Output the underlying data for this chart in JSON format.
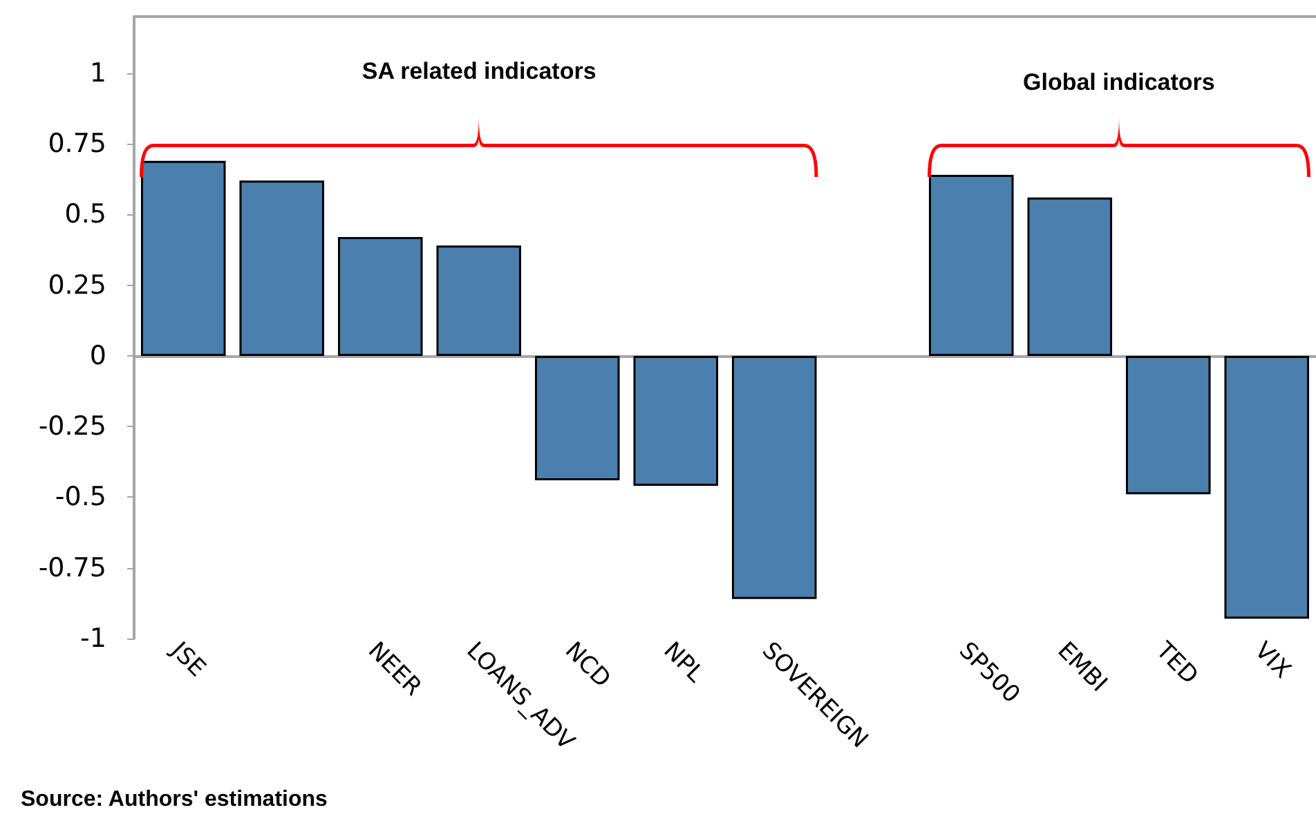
{
  "chart_data": {
    "type": "bar",
    "categories": [
      "JSE",
      null,
      "NEER",
      "LOANS_ADV",
      "NCD",
      "NPL",
      "SOVEREIGN",
      null,
      "SP500",
      "EMBI",
      "TED",
      "VIX"
    ],
    "values": [
      0.69,
      0.62,
      0.42,
      0.39,
      -0.44,
      -0.46,
      -0.86,
      null,
      0.64,
      0.56,
      -0.49,
      -0.93
    ],
    "color": "#4a7fae",
    "ylim": [
      -1,
      1.2
    ],
    "yticks": [
      -1,
      -0.75,
      -0.5,
      -0.25,
      0,
      0.25,
      0.5,
      0.75,
      1
    ],
    "annotations": [
      "SA related indicators",
      "Global indicators",
      "Source: Authors' estimations"
    ]
  }
}
